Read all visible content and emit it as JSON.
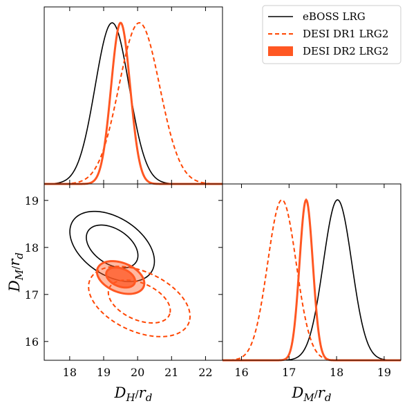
{
  "chart_data": {
    "type": "corner-plot",
    "legend": {
      "position": "top-right",
      "entries": [
        {
          "label": "eBOSS LRG",
          "color": "#000000",
          "style": "solid"
        },
        {
          "label": "DESI DR1 LRG2",
          "color": "#ff4500",
          "style": "dashed"
        },
        {
          "label": "DESI DR2 LRG2",
          "color": "#ff5722",
          "style": "filled"
        }
      ]
    },
    "axes": {
      "DH": {
        "label": "D_H/r_d",
        "range": [
          17.25,
          22.5
        ],
        "ticks": [
          18,
          19,
          20,
          21,
          22
        ]
      },
      "DM": {
        "label": "D_M/r_d",
        "range": [
          15.6,
          19.35
        ],
        "ticks": [
          16,
          17,
          18,
          19
        ]
      }
    },
    "series": [
      {
        "name": "eBOSS LRG",
        "color": "#000000",
        "dash": false,
        "fill": false,
        "DH_mean": 19.25,
        "DH_sigma": 0.5,
        "DM_mean": 18.02,
        "DM_sigma": 0.3,
        "corr": -0.42
      },
      {
        "name": "DESI DR1 LRG2",
        "color": "#ff4500",
        "dash": true,
        "fill": false,
        "DH_mean": 20.05,
        "DH_sigma": 0.6,
        "DM_mean": 16.85,
        "DM_sigma": 0.3,
        "corr": -0.42
      },
      {
        "name": "DESI DR2 LRG2",
        "color": "#ff5722",
        "dash": false,
        "fill": true,
        "DH_mean": 19.5,
        "DH_sigma": 0.28,
        "DM_mean": 17.36,
        "DM_sigma": 0.14,
        "corr": -0.35
      }
    ]
  }
}
